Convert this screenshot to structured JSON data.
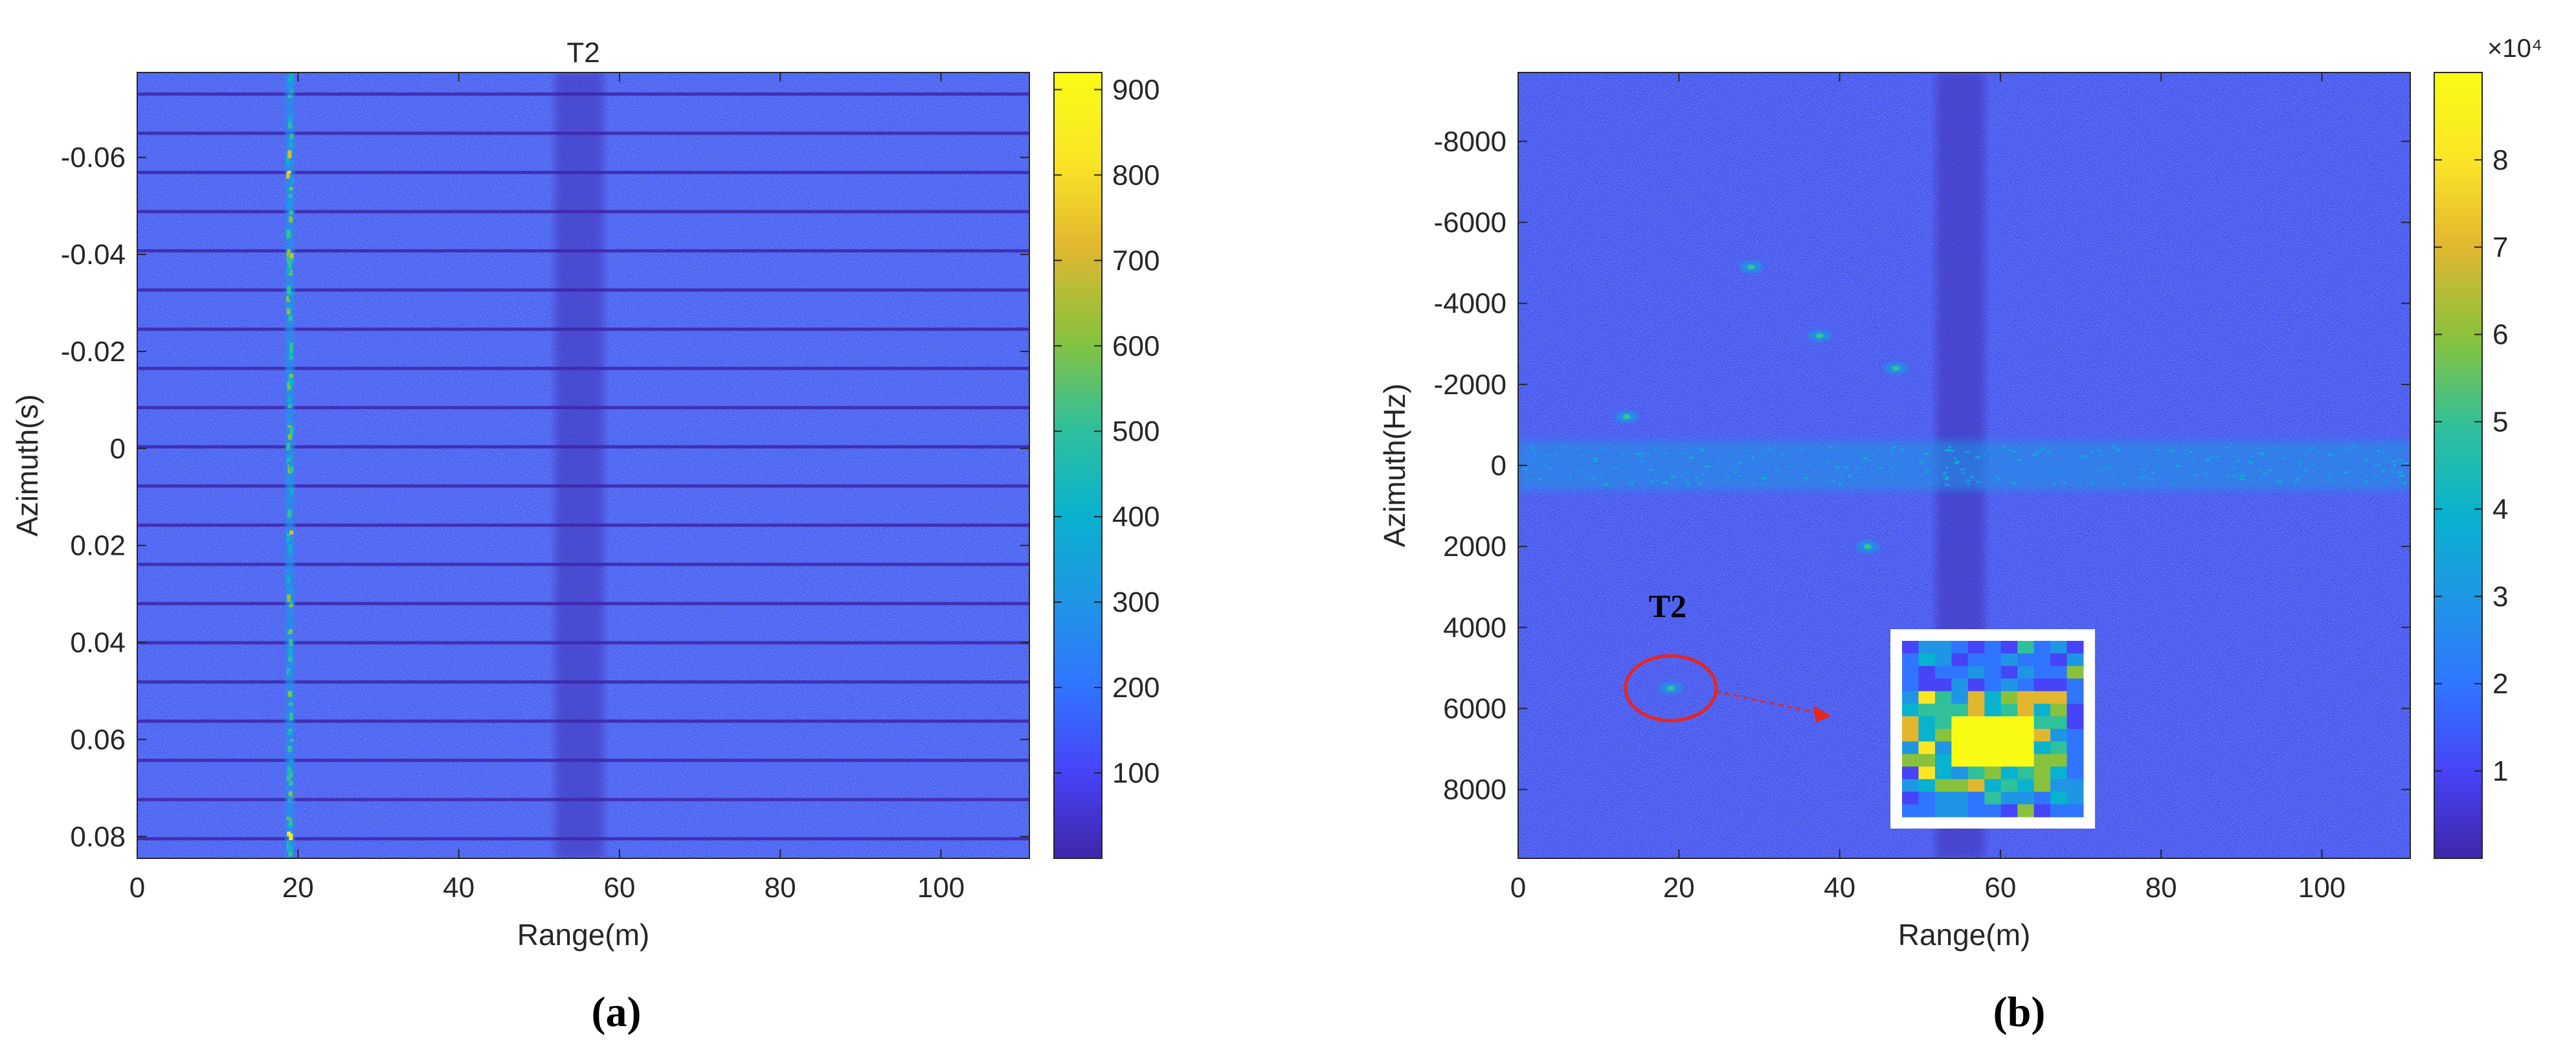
{
  "colormap": [
    "#3e26a8",
    "#4743f8",
    "#2f75ff",
    "#1f96e5",
    "#09b2ce",
    "#30c09a",
    "#88c23d",
    "#e2b72f",
    "#fbe626",
    "#f9fb15"
  ],
  "annotation_color": "#e8261c",
  "chart_data": [
    {
      "panel_label": "(a)",
      "type": "heatmap",
      "title": "T2",
      "xlabel": "Range(m)",
      "ylabel": "Azimuth(s)",
      "xlim": [
        0,
        111
      ],
      "ylim": [
        -0.0775,
        0.0845
      ],
      "y_reversed": true,
      "xticks": [
        0,
        20,
        40,
        60,
        80,
        100
      ],
      "yticks": [
        -0.06,
        -0.04,
        -0.02,
        0,
        0.02,
        0.04,
        0.06,
        0.08
      ],
      "ytick_labels": [
        "-0.06",
        "-0.04",
        "-0.02",
        "0",
        "0.02",
        "0.04",
        "0.06",
        "0.08"
      ],
      "grid": false,
      "background_level": 130,
      "features": {
        "bright_vertical_line_range_m": 19,
        "bright_line_peak_level": 900,
        "dark_vertical_band_range_m": [
          52,
          58
        ],
        "dark_horizontal_lines_count": 20
      },
      "colorbar": {
        "range": [
          0,
          920
        ],
        "ticks": [
          100,
          200,
          300,
          400,
          500,
          600,
          700,
          800,
          900
        ],
        "tick_labels": [
          "100",
          "200",
          "300",
          "400",
          "500",
          "600",
          "700",
          "800",
          "900"
        ],
        "exponent_label": ""
      }
    },
    {
      "panel_label": "(b)",
      "type": "heatmap",
      "title": "",
      "xlabel": "Range(m)",
      "ylabel": "Azimuth(Hz)",
      "xlim": [
        0,
        111
      ],
      "ylim": [
        -9700,
        9700
      ],
      "y_reversed": true,
      "xticks": [
        0,
        20,
        40,
        60,
        80,
        100
      ],
      "yticks": [
        -8000,
        -6000,
        -4000,
        -2000,
        0,
        2000,
        4000,
        6000,
        8000
      ],
      "ytick_labels": [
        "-8000",
        "-6000",
        "-4000",
        "-2000",
        "0",
        "2000",
        "4000",
        "6000",
        "8000"
      ],
      "grid": false,
      "background_level": 0.9,
      "features": {
        "bright_horizontal_band_azimuth_hz": 0,
        "dark_vertical_band_range_m": [
          52,
          58
        ],
        "point_targets": [
          {
            "range": 29,
            "azimuth": -4900
          },
          {
            "range": 37.5,
            "azimuth": -3200
          },
          {
            "range": 47,
            "azimuth": -2400
          },
          {
            "range": 13.5,
            "azimuth": -1200
          },
          {
            "range": 43.5,
            "azimuth": 2000
          },
          {
            "range": 19,
            "azimuth": 5500
          }
        ]
      },
      "annotation": {
        "label": "T2",
        "target_range": 19,
        "target_azimuth": 5500
      },
      "colorbar": {
        "range": [
          0,
          9
        ],
        "ticks": [
          1,
          2,
          3,
          4,
          5,
          6,
          7,
          8
        ],
        "tick_labels": [
          "1",
          "2",
          "3",
          "4",
          "5",
          "6",
          "7",
          "8"
        ],
        "exponent_label": "×10⁴"
      }
    }
  ]
}
